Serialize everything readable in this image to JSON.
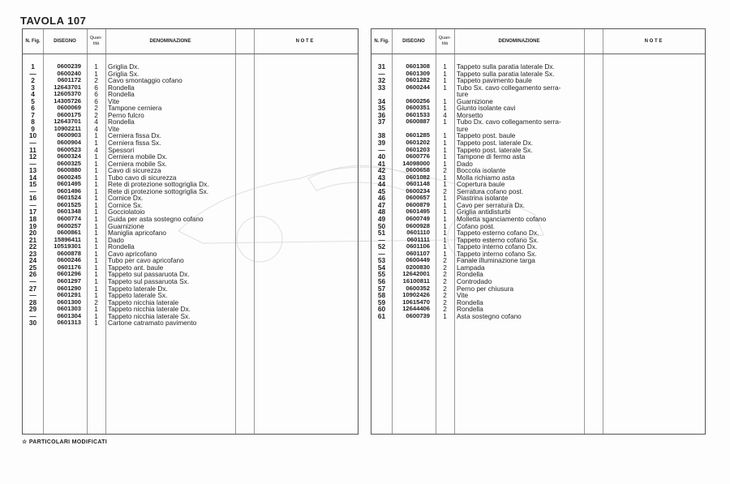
{
  "title": "TAVOLA 107",
  "footnote": "☆  PARTICOLARI MODIFICATI",
  "headers": {
    "fig": "N. Fig.",
    "disegno": "DISEGNO",
    "quantita": "Quan- tità",
    "denominazione": "DENOMINAZIONE",
    "note": "N O T E"
  },
  "left_rows": [
    {
      "fig": "1",
      "dis": "0600239",
      "qty": "1",
      "den": "Griglia Dx."
    },
    {
      "fig": "—",
      "dis": "0600240",
      "qty": "1",
      "den": "Griglia Sx."
    },
    {
      "fig": "2",
      "dis": "0601172",
      "qty": "2",
      "den": "Cavo smontaggio cofano"
    },
    {
      "fig": "3",
      "dis": "12643701",
      "qty": "6",
      "den": "Rondella"
    },
    {
      "fig": "4",
      "dis": "12605370",
      "qty": "6",
      "den": "Rondella"
    },
    {
      "fig": "5",
      "dis": "14305726",
      "qty": "6",
      "den": "Vite"
    },
    {
      "fig": "6",
      "dis": "0600069",
      "qty": "2",
      "den": "Tampone cerniera"
    },
    {
      "fig": "7",
      "dis": "0600175",
      "qty": "2",
      "den": "Perno fulcro"
    },
    {
      "fig": "8",
      "dis": "12643701",
      "qty": "4",
      "den": "Rondella"
    },
    {
      "fig": "9",
      "dis": "10902211",
      "qty": "4",
      "den": "Vite"
    },
    {
      "fig": "10",
      "dis": "0600903",
      "qty": "1",
      "den": "Cerniera fissa Dx."
    },
    {
      "fig": "—",
      "dis": "0600904",
      "qty": "1",
      "den": "Cerniera fissa Sx."
    },
    {
      "fig": "11",
      "dis": "0600523",
      "qty": "4",
      "den": "Spessori"
    },
    {
      "fig": "12",
      "dis": "0600324",
      "qty": "1",
      "den": "Cerniera mobile Dx."
    },
    {
      "fig": "—",
      "dis": "0600325",
      "qty": "1",
      "den": "Cerniera mobile Sx."
    },
    {
      "fig": "13",
      "dis": "0600880",
      "qty": "1",
      "den": "Cavo di sicurezza"
    },
    {
      "fig": "14",
      "dis": "0600245",
      "qty": "1",
      "den": "Tubo cavo di sicurezza"
    },
    {
      "fig": "15",
      "dis": "0601495",
      "qty": "1",
      "den": "Rete di protezione sottogriglia Dx."
    },
    {
      "fig": "—",
      "dis": "0601496",
      "qty": "1",
      "den": "Rete di protezione sottogriglia Sx."
    },
    {
      "fig": "16",
      "dis": "0601524",
      "qty": "1",
      "den": "Cornice Dx."
    },
    {
      "fig": "—",
      "dis": "0601525",
      "qty": "1",
      "den": "Cornice Sx."
    },
    {
      "fig": "17",
      "dis": "0601348",
      "qty": "1",
      "den": "Gocciolatoio"
    },
    {
      "fig": "18",
      "dis": "0600774",
      "qty": "1",
      "den": "Guida per asta sostegno cofano"
    },
    {
      "fig": "19",
      "dis": "0600257",
      "qty": "1",
      "den": "Guarnizione"
    },
    {
      "fig": "20",
      "dis": "0600861",
      "qty": "1",
      "den": "Maniglia apricofano"
    },
    {
      "fig": "21",
      "dis": "15896411",
      "qty": "1",
      "den": "Dado"
    },
    {
      "fig": "22",
      "dis": "10519301",
      "qty": "1",
      "den": "Rondella"
    },
    {
      "fig": "23",
      "dis": "0600878",
      "qty": "1",
      "den": "Cavo apricofano"
    },
    {
      "fig": "24",
      "dis": "0600246",
      "qty": "1",
      "den": "Tubo per cavo apricofano"
    },
    {
      "fig": "25",
      "dis": "0601176",
      "qty": "1",
      "den": "Tappeto ant. baule"
    },
    {
      "fig": "26",
      "dis": "0601296",
      "qty": "1",
      "den": "Tappeto sul passaruota Dx."
    },
    {
      "fig": "—",
      "dis": "0601297",
      "qty": "1",
      "den": "Tappeto sul passaruota Sx."
    },
    {
      "fig": "27",
      "dis": "0601290",
      "qty": "1",
      "den": "Tappeto laterale  Dx."
    },
    {
      "fig": "—",
      "dis": "0601291",
      "qty": "1",
      "den": "Tappeto laterale  Sx."
    },
    {
      "fig": "28",
      "dis": "0601300",
      "qty": "2",
      "den": "Tappeto nicchia laterale"
    },
    {
      "fig": "29",
      "dis": "0601303",
      "qty": "1",
      "den": "Tappeto nicchia laterale   Dx."
    },
    {
      "fig": "—",
      "dis": "0601304",
      "qty": "1",
      "den": "Tappeto nicchia laterale   Sx."
    },
    {
      "fig": "30",
      "dis": "0601313",
      "qty": "1",
      "den": "Cartone catramato pavimento"
    }
  ],
  "right_rows": [
    {
      "fig": "31",
      "dis": "0601308",
      "qty": "1",
      "den": "Tappeto sulla paratia laterale Dx."
    },
    {
      "fig": "—",
      "dis": "0601309",
      "qty": "1",
      "den": "Tappeto sulla paratia laterale Sx."
    },
    {
      "fig": "32",
      "dis": "0601282",
      "qty": "1",
      "den": "Tappeto pavimento baule"
    },
    {
      "fig": "33",
      "dis": "0600244",
      "qty": "1",
      "den": "Tubo Sx. cavo collegamento serra-"
    },
    {
      "fig": "",
      "dis": "",
      "qty": "",
      "den": "      ture"
    },
    {
      "fig": "34",
      "dis": "0600256",
      "qty": "1",
      "den": "Guarnizione"
    },
    {
      "fig": "35",
      "dis": "0600351",
      "qty": "1",
      "den": "Giunto isolante cavi"
    },
    {
      "fig": "36",
      "dis": "0601533",
      "qty": "4",
      "den": "Morsetto"
    },
    {
      "fig": "37",
      "dis": "0600887",
      "qty": "1",
      "den": "Tubo Dx. cavo collegamento serra-"
    },
    {
      "fig": "",
      "dis": "",
      "qty": "",
      "den": "      ture"
    },
    {
      "fig": "38",
      "dis": "0601285",
      "qty": "1",
      "den": "Tappeto post. baule"
    },
    {
      "fig": "39",
      "dis": "0601202",
      "qty": "1",
      "den": "Tappeto post. laterale  Dx."
    },
    {
      "fig": "—",
      "dis": "0601203",
      "qty": "1",
      "den": "Tappeto post. laterale  Sx."
    },
    {
      "fig": "40",
      "dis": "0600776",
      "qty": "1",
      "den": "Tampone di fermo asta"
    },
    {
      "fig": "41",
      "dis": "14098000",
      "qty": "1",
      "den": "Dado"
    },
    {
      "fig": "42",
      "dis": "0600658",
      "qty": "2",
      "den": "Boccola isolante"
    },
    {
      "fig": "43",
      "dis": "0601082",
      "qty": "1",
      "den": "Molla richiamo asta"
    },
    {
      "fig": "44",
      "dis": "0601148",
      "qty": "1",
      "den": "Copertura baule"
    },
    {
      "fig": "45",
      "dis": "0600234",
      "qty": "2",
      "den": "Serratura cofano post."
    },
    {
      "fig": "46",
      "dis": "0600657",
      "qty": "1",
      "den": "Piastrina isolante"
    },
    {
      "fig": "47",
      "dis": "0600879",
      "qty": "1",
      "den": "Cavo per serratura  Dx."
    },
    {
      "fig": "48",
      "dis": "0601495",
      "qty": "1",
      "den": "Griglia antidisturbi"
    },
    {
      "fig": "49",
      "dis": "0600749",
      "qty": "1",
      "den": "Molletta sganciamento cofano"
    },
    {
      "fig": "50",
      "dis": "0600928",
      "qty": "1",
      "den": "Cofano post."
    },
    {
      "fig": "51",
      "dis": "0601110",
      "qty": "1",
      "den": "Tappeto esterno cofano Dx."
    },
    {
      "fig": "—",
      "dis": "0601111",
      "qty": "1",
      "den": "Tappeto esterno cofano Sx."
    },
    {
      "fig": "52",
      "dis": "0601106",
      "qty": "1",
      "den": "Tappeto interno cofano Dx."
    },
    {
      "fig": "—",
      "dis": "0601107",
      "qty": "1",
      "den": "Tappeto interno cofano Sx."
    },
    {
      "fig": "53",
      "dis": "0600449",
      "qty": "2",
      "den": "Fanale illuminazione targa"
    },
    {
      "fig": "54",
      "dis": "0200830",
      "qty": "2",
      "den": "Lampada"
    },
    {
      "fig": "55",
      "dis": "12642001",
      "qty": "2",
      "den": "Rondella"
    },
    {
      "fig": "56",
      "dis": "16100811",
      "qty": "2",
      "den": "Controdado"
    },
    {
      "fig": "57",
      "dis": "0600352",
      "qty": "2",
      "den": "Perno per chiusura"
    },
    {
      "fig": "58",
      "dis": "10902426",
      "qty": "2",
      "den": "Vite"
    },
    {
      "fig": "59",
      "dis": "10615470",
      "qty": "2",
      "den": "Rondella"
    },
    {
      "fig": "60",
      "dis": "12644406",
      "qty": "2",
      "den": "Rondella"
    },
    {
      "fig": "61",
      "dis": "0600739",
      "qty": "1",
      "den": "Asta sostegno cofano"
    }
  ]
}
